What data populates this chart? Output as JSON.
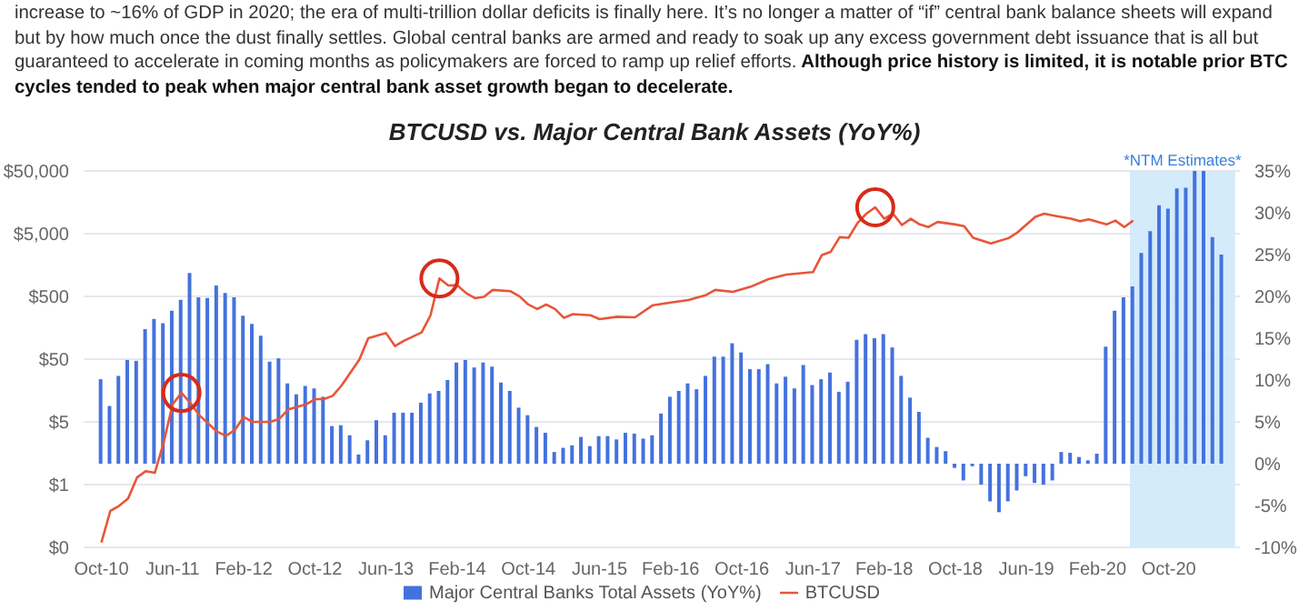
{
  "chart_data": {
    "type": "bar",
    "title": "BTCUSD vs. Major Central Bank Assets (YoY%)",
    "annotations": [
      "increase to ~16% of GDP in 2020; the era of multi-trillion dollar deficits is finally here. It’s no longer a matter of “if” central bank balance sheets will expand but by how much once the dust finally settles. Global central banks are armed and ready to soak up any excess government debt issuance that is all but guaranteed to accelerate in coming months as policymakers are forced to ramp up relief efforts.",
      "Although price history is limited, it is notable prior BTC cycles tended to peak when major central bank asset growth began to decelerate."
    ],
    "series": [
      {
        "name": "Major Central Banks Total Assets (YoY%)",
        "axis": "y2",
        "color": "#4472dd",
        "x": [
          "2010-10",
          "2010-11",
          "2010-12",
          "2011-01",
          "2011-02",
          "2011-03",
          "2011-04",
          "2011-05",
          "2011-06",
          "2011-07",
          "2011-08",
          "2011-09",
          "2011-10",
          "2011-11",
          "2011-12",
          "2012-01",
          "2012-02",
          "2012-03",
          "2012-04",
          "2012-05",
          "2012-06",
          "2012-07",
          "2012-08",
          "2012-09",
          "2012-10",
          "2012-11",
          "2012-12",
          "2013-01",
          "2013-02",
          "2013-03",
          "2013-04",
          "2013-05",
          "2013-06",
          "2013-07",
          "2013-08",
          "2013-09",
          "2013-10",
          "2013-11",
          "2013-12",
          "2014-01",
          "2014-02",
          "2014-03",
          "2014-04",
          "2014-05",
          "2014-06",
          "2014-07",
          "2014-08",
          "2014-09",
          "2014-10",
          "2014-11",
          "2014-12",
          "2015-01",
          "2015-02",
          "2015-03",
          "2015-04",
          "2015-05",
          "2015-06",
          "2015-07",
          "2015-08",
          "2015-09",
          "2015-10",
          "2015-11",
          "2015-12",
          "2016-01",
          "2016-02",
          "2016-03",
          "2016-04",
          "2016-05",
          "2016-06",
          "2016-07",
          "2016-08",
          "2016-09",
          "2016-10",
          "2016-11",
          "2016-12",
          "2017-01",
          "2017-02",
          "2017-03",
          "2017-04",
          "2017-05",
          "2017-06",
          "2017-07",
          "2017-08",
          "2017-09",
          "2017-10",
          "2017-11",
          "2017-12",
          "2018-01",
          "2018-02",
          "2018-03",
          "2018-04",
          "2018-05",
          "2018-06",
          "2018-07",
          "2018-08",
          "2018-09",
          "2018-10",
          "2018-11",
          "2018-12",
          "2019-01",
          "2019-02",
          "2019-03",
          "2019-04",
          "2019-05",
          "2019-06",
          "2019-07",
          "2019-08",
          "2019-09",
          "2019-10",
          "2019-11",
          "2019-12",
          "2020-01",
          "2020-02",
          "2020-03",
          "2020-04",
          "2020-05",
          "2020-06",
          "2020-07",
          "2020-08",
          "2020-09",
          "2020-10",
          "2020-11",
          "2020-12",
          "2021-01",
          "2021-02",
          "2021-03",
          "2021-04"
        ],
        "values": [
          10.1,
          6.9,
          10.5,
          12.4,
          12.3,
          16.1,
          17.3,
          16.8,
          18.3,
          19.6,
          22.8,
          19.9,
          19.8,
          21.3,
          20.4,
          19.9,
          17.7,
          16.7,
          15.3,
          12.2,
          12.6,
          9.6,
          8.3,
          9.3,
          9.0,
          8.0,
          4.5,
          4.6,
          3.4,
          1.1,
          2.8,
          5.2,
          3.4,
          6.1,
          6.1,
          6.1,
          7.3,
          8.4,
          8.7,
          10.0,
          12.1,
          12.4,
          11.5,
          12.1,
          11.6,
          9.7,
          8.7,
          6.7,
          5.8,
          4.4,
          3.7,
          1.4,
          1.9,
          2.2,
          3.2,
          2.1,
          3.3,
          3.3,
          2.9,
          3.7,
          3.6,
          3.0,
          3.4,
          6.0,
          8.0,
          8.7,
          9.6,
          8.9,
          10.5,
          12.8,
          12.8,
          14.4,
          13.3,
          11.3,
          11.3,
          11.9,
          9.6,
          10.4,
          9.0,
          11.8,
          9.4,
          10.1,
          10.9,
          8.6,
          9.8,
          14.8,
          15.5,
          15.0,
          15.5,
          13.9,
          10.5,
          7.9,
          6.2,
          3.1,
          2.0,
          1.5,
          -0.5,
          -2.0,
          -0.3,
          -2.5,
          -4.5,
          -5.8,
          -4.5,
          -3.2,
          -1.5,
          -2.3,
          -2.5,
          -2.0,
          1.4,
          1.3,
          0.8,
          0.4,
          1.2,
          14.0,
          18.3,
          19.9,
          21.2,
          25.2,
          27.8,
          30.9,
          30.5,
          32.9,
          33.0,
          35.0,
          35.0,
          27.1,
          25.0
        ]
      },
      {
        "name": "BTCUSD",
        "type": "line",
        "axis": "y",
        "color": "#e8553a",
        "x": [
          "2010-10",
          "2010-11",
          "2010-12",
          "2011-01",
          "2011-02",
          "2011-03",
          "2011-04",
          "2011-05",
          "2011-06",
          "2011-07",
          "2011-08",
          "2011-09",
          "2011-11",
          "2011-12",
          "2012-01",
          "2012-02",
          "2012-03",
          "2012-05",
          "2012-06",
          "2012-07",
          "2012-09",
          "2012-10",
          "2012-11",
          "2012-12",
          "2013-01",
          "2013-03",
          "2013-04",
          "2013-06",
          "2013-07",
          "2013-08",
          "2013-10",
          "2013-11",
          "2013-12",
          "2014-01",
          "2014-02",
          "2014-03",
          "2014-04",
          "2014-05",
          "2014-06",
          "2014-08",
          "2014-09",
          "2014-10",
          "2014-11",
          "2014-12",
          "2015-01",
          "2015-02",
          "2015-03",
          "2015-05",
          "2015-06",
          "2015-08",
          "2015-10",
          "2015-12",
          "2016-02",
          "2016-04",
          "2016-06",
          "2016-07",
          "2016-09",
          "2016-11",
          "2017-01",
          "2017-03",
          "2017-06",
          "2017-07",
          "2017-08",
          "2017-09",
          "2017-10",
          "2017-11",
          "2017-12",
          "2018-01",
          "2018-02",
          "2018-03",
          "2018-04",
          "2018-05",
          "2018-06",
          "2018-07",
          "2018-08",
          "2018-10",
          "2018-11",
          "2018-12",
          "2019-02",
          "2019-04",
          "2019-05",
          "2019-07",
          "2019-08",
          "2019-09",
          "2019-11",
          "2019-12",
          "2020-01",
          "2020-03",
          "2020-04",
          "2020-05",
          "2020-06"
        ],
        "values": [
          0.06,
          0.19,
          0.23,
          0.3,
          0.65,
          0.82,
          0.77,
          2.35,
          9.5,
          14.5,
          10,
          6.4,
          3.5,
          3,
          3.7,
          6,
          5,
          5,
          5.6,
          7.9,
          9.5,
          11.5,
          11.5,
          13,
          19,
          49,
          108,
          130,
          81,
          98,
          133,
          250,
          966,
          746,
          755,
          565,
          469,
          491,
          634,
          605,
          502,
          371,
          315,
          371,
          315,
          227,
          261,
          250,
          217,
          237,
          232,
          362,
          398,
          437,
          526,
          634,
          591,
          713,
          943,
          1111,
          1219,
          2289,
          2570,
          4396,
          4300,
          7347,
          10420,
          13160,
          8650,
          10420,
          6850,
          8650,
          7010,
          6380,
          7690,
          7010,
          6600,
          4300,
          3480,
          4250,
          5240,
          9270,
          10420,
          9720,
          8650,
          7880,
          8450,
          7010,
          8070,
          6380,
          8070
        ]
      }
    ],
    "xlim": [
      "2010-08",
      "2021-06"
    ],
    "xticks": [
      {
        "value": "2010-10",
        "label": "Oct-10"
      },
      {
        "value": "2011-06",
        "label": "Jun-11"
      },
      {
        "value": "2012-02",
        "label": "Feb-12"
      },
      {
        "value": "2012-10",
        "label": "Oct-12"
      },
      {
        "value": "2013-06",
        "label": "Jun-13"
      },
      {
        "value": "2014-02",
        "label": "Feb-14"
      },
      {
        "value": "2014-10",
        "label": "Oct-14"
      },
      {
        "value": "2015-06",
        "label": "Jun-15"
      },
      {
        "value": "2016-02",
        "label": "Feb-16"
      },
      {
        "value": "2016-10",
        "label": "Oct-16"
      },
      {
        "value": "2017-06",
        "label": "Jun-17"
      },
      {
        "value": "2018-02",
        "label": "Feb-18"
      },
      {
        "value": "2018-10",
        "label": "Oct-18"
      },
      {
        "value": "2019-06",
        "label": "Jun-19"
      },
      {
        "value": "2020-02",
        "label": "Feb-20"
      },
      {
        "value": "2020-10",
        "label": "Oct-20"
      }
    ],
    "log": "y",
    "ylim": [
      0.05,
      50000
    ],
    "yticks": [
      {
        "value": 0.05,
        "label": "$0"
      },
      {
        "value": 0.5,
        "label": "$1"
      },
      {
        "value": 5,
        "label": "$5"
      },
      {
        "value": 50,
        "label": "$50"
      },
      {
        "value": 500,
        "label": "$500"
      },
      {
        "value": 5000,
        "label": "$5,000"
      },
      {
        "value": 50000,
        "label": "$50,000"
      }
    ],
    "y2lim": [
      -10,
      35
    ],
    "y2ticks": [
      {
        "value": -10,
        "label": "-10%"
      },
      {
        "value": -5,
        "label": "-5%"
      },
      {
        "value": 0,
        "label": "0%"
      },
      {
        "value": 5,
        "label": "5%"
      },
      {
        "value": 10,
        "label": "10%"
      },
      {
        "value": 15,
        "label": "15%"
      },
      {
        "value": 20,
        "label": "20%"
      },
      {
        "value": 25,
        "label": "25%"
      },
      {
        "value": 30,
        "label": "30%"
      },
      {
        "value": 35,
        "label": "35%"
      }
    ],
    "bands": [
      {
        "axis": "x",
        "from": "2020-05-20",
        "to": "2021-05-15",
        "label": "*NTM Estimates*",
        "color": "#cfe9fb"
      }
    ],
    "grid": "y",
    "legend": "bottom",
    "marker": "none"
  }
}
